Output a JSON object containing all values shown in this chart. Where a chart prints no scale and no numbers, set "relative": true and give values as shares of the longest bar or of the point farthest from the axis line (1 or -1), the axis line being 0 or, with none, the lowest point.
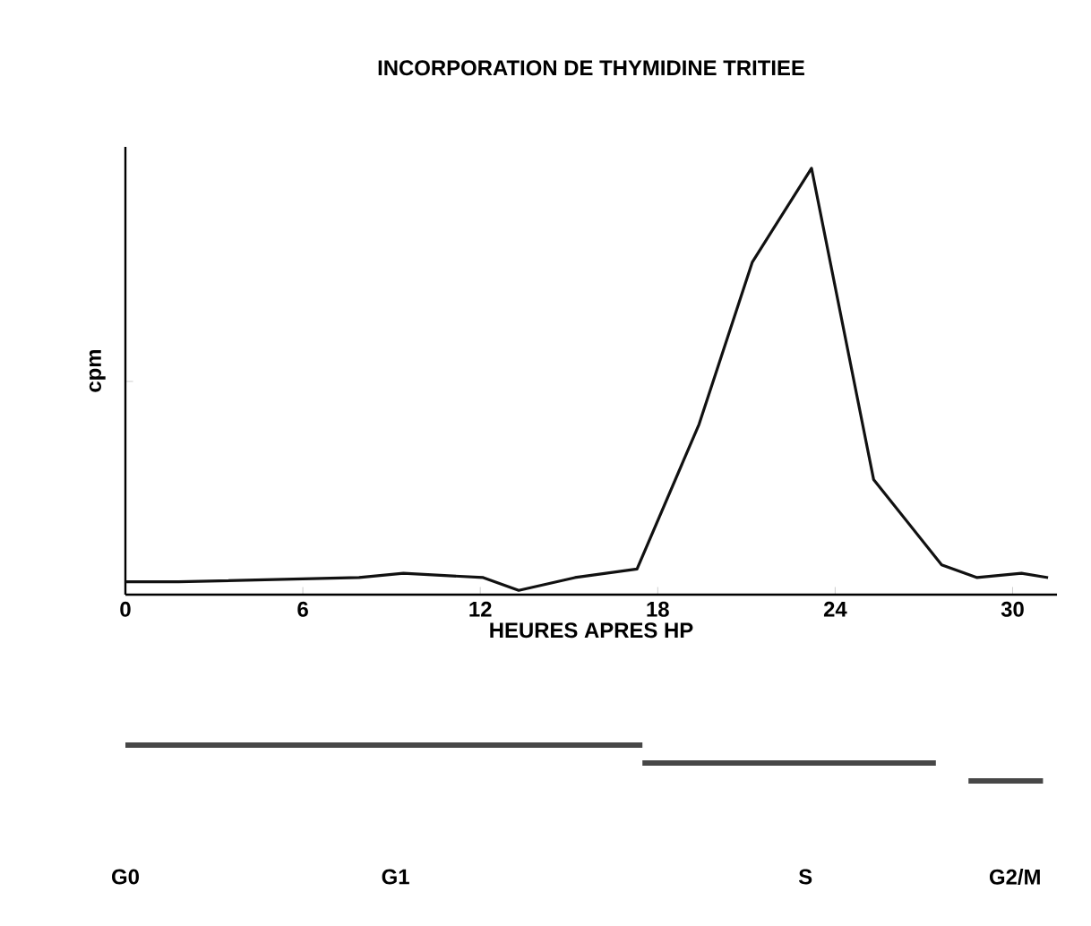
{
  "chart_data": {
    "type": "line",
    "title": "INCORPORATION DE THYMIDINE TRITIEE",
    "xlabel": "HEURES APRES HP",
    "ylabel": "cpm",
    "relative": true,
    "xlim": [
      0,
      31.5
    ],
    "xticks": [
      0,
      6,
      12,
      18,
      24,
      30
    ],
    "marker": "none",
    "grid": false,
    "series": [
      {
        "color": "#111111",
        "x": [
          0,
          1.8,
          7.9,
          9.4,
          12.1,
          13.3,
          15.2,
          17.3,
          19.4,
          21.2,
          23.2,
          25.3,
          27.6,
          28.8,
          30.3,
          31.2
        ],
        "values": [
          0.03,
          0.03,
          0.04,
          0.05,
          0.04,
          0.01,
          0.04,
          0.06,
          0.4,
          0.78,
          1,
          0.27,
          0.07,
          0.04,
          0.05,
          0.04
        ]
      }
    ],
    "annotations": [
      "G0",
      "G1",
      "S",
      "G2/M"
    ]
  }
}
